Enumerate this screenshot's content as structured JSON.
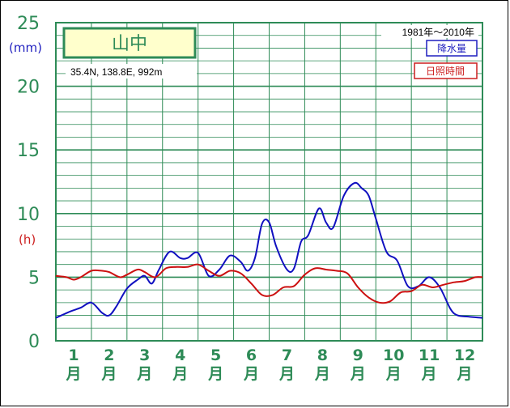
{
  "chart_data": {
    "type": "line",
    "title": "山中",
    "location": "35.4N,  138.8E,  992m",
    "period": "1981年〜2010年",
    "y_unit_left": "(mm)",
    "y_unit_left2": "(h)",
    "ylim": [
      0,
      25
    ],
    "yticks": [
      "0",
      "5",
      "10",
      "15",
      "20",
      "25"
    ],
    "months": [
      "1",
      "2",
      "3",
      "4",
      "5",
      "6",
      "7",
      "8",
      "9",
      "10",
      "11",
      "12"
    ],
    "month_suffix": "月",
    "colors": {
      "grid": "#2e8b57",
      "precip": "#1010c0",
      "sunshine": "#cc1010",
      "title_bg": "#ffffcc"
    },
    "series": [
      {
        "name": "降水量",
        "color": "#1010c0",
        "x": [
          0.5,
          0.9,
          1.2,
          1.5,
          1.8,
          2.0,
          2.2,
          2.5,
          2.8,
          3.0,
          3.2,
          3.4,
          3.7,
          4.0,
          4.2,
          4.5,
          4.8,
          5.1,
          5.4,
          5.7,
          5.9,
          6.1,
          6.3,
          6.5,
          6.7,
          7.0,
          7.2,
          7.4,
          7.6,
          7.9,
          8.1,
          8.3,
          8.6,
          8.9,
          9.1,
          9.3,
          9.5,
          9.8,
          10.1,
          10.4,
          10.7,
          11.0,
          11.3,
          11.6,
          11.8,
          12.1,
          12.5
        ],
        "y": [
          1.8,
          2.3,
          2.6,
          3.0,
          2.2,
          2.0,
          2.7,
          4.1,
          4.8,
          5.1,
          4.5,
          5.6,
          7.0,
          6.5,
          6.5,
          6.9,
          5.1,
          5.6,
          6.7,
          6.2,
          5.5,
          6.5,
          9.2,
          9.3,
          7.4,
          5.6,
          5.7,
          7.8,
          8.3,
          10.4,
          9.3,
          8.9,
          11.4,
          12.4,
          12.0,
          11.4,
          9.6,
          7.0,
          6.3,
          4.3,
          4.3,
          5.0,
          4.2,
          2.5,
          2.0,
          1.9,
          1.8
        ]
      },
      {
        "name": "日照時間",
        "color": "#cc1010",
        "x": [
          0.5,
          0.8,
          1.0,
          1.2,
          1.5,
          1.8,
          2.0,
          2.3,
          2.5,
          2.8,
          3.0,
          3.3,
          3.6,
          3.9,
          4.2,
          4.5,
          4.8,
          5.1,
          5.4,
          5.7,
          6.0,
          6.3,
          6.6,
          6.9,
          7.2,
          7.5,
          7.8,
          8.1,
          8.4,
          8.7,
          9.0,
          9.3,
          9.6,
          9.9,
          10.2,
          10.5,
          10.8,
          11.1,
          11.4,
          11.7,
          12.0,
          12.3,
          12.5
        ],
        "y": [
          5.1,
          5.0,
          4.8,
          5.0,
          5.5,
          5.5,
          5.4,
          5.0,
          5.2,
          5.6,
          5.4,
          5.0,
          5.7,
          5.8,
          5.8,
          6.0,
          5.5,
          5.1,
          5.5,
          5.3,
          4.5,
          3.6,
          3.6,
          4.2,
          4.3,
          5.2,
          5.7,
          5.6,
          5.5,
          5.3,
          4.2,
          3.4,
          3.0,
          3.1,
          3.8,
          3.9,
          4.4,
          4.2,
          4.4,
          4.6,
          4.7,
          5.0,
          5.0
        ]
      }
    ]
  }
}
